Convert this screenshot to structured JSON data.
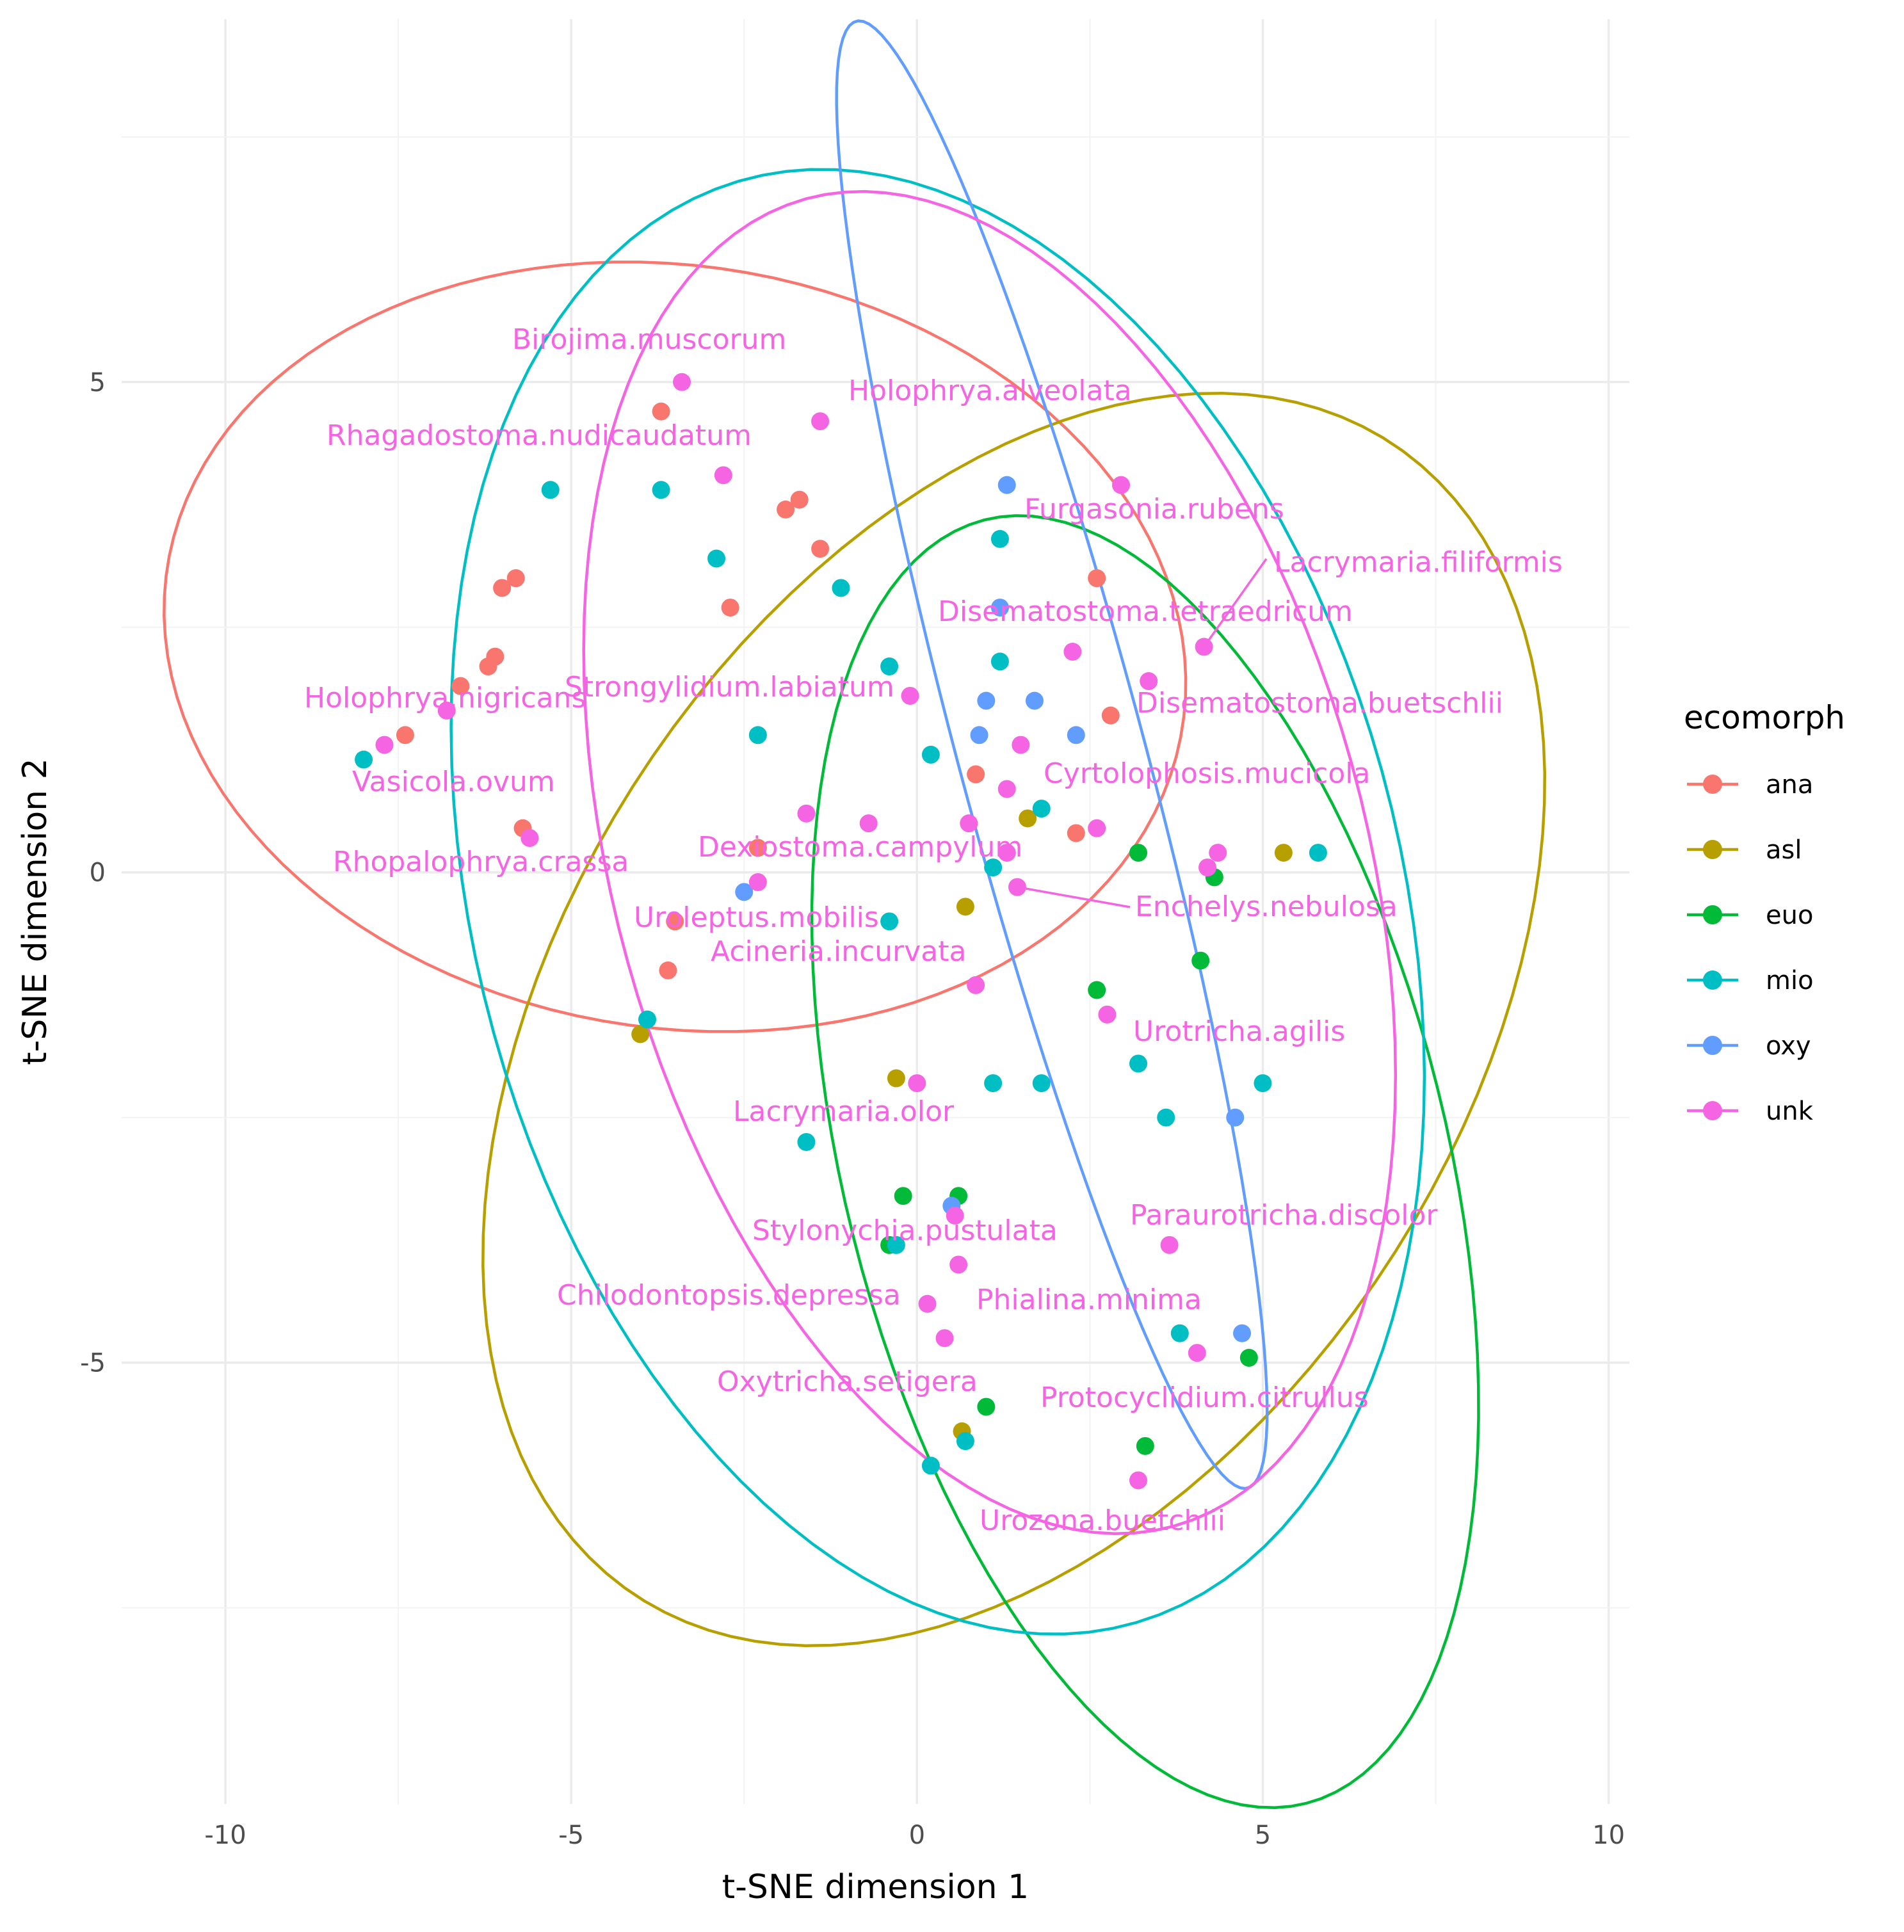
{
  "chart_data": {
    "type": "scatter",
    "xlabel": "t-SNE dimension 1",
    "ylabel": "t-SNE dimension 2",
    "xlim": [
      -11.5,
      10.3
    ],
    "ylim": [
      -9.5,
      8.7
    ],
    "x_ticks": [
      -10,
      -5,
      0,
      5,
      10
    ],
    "y_ticks": [
      -5,
      0,
      5
    ],
    "x_tick_labels": [
      "-10",
      "-5",
      "0",
      "5",
      "10"
    ],
    "y_tick_labels": [
      "-5",
      "0",
      "5"
    ],
    "grid": true,
    "legend": {
      "title": "ecomorph",
      "position": "right",
      "entries": [
        {
          "name": "ana",
          "color": "#F8766D"
        },
        {
          "name": "asl",
          "color": "#B79F00"
        },
        {
          "name": "euo",
          "color": "#00BA38"
        },
        {
          "name": "mio",
          "color": "#00BFC4"
        },
        {
          "name": "oxy",
          "color": "#619CFF"
        },
        {
          "name": "unk",
          "color": "#F564E3"
        }
      ]
    },
    "series": [
      {
        "name": "ana",
        "color": "#F8766D",
        "points": [
          [
            -3.7,
            4.7
          ],
          [
            -1.9,
            3.7
          ],
          [
            -1.7,
            3.8
          ],
          [
            -1.4,
            3.3
          ],
          [
            -2.7,
            2.7
          ],
          [
            -6.0,
            2.9
          ],
          [
            -5.8,
            3.0
          ],
          [
            -6.1,
            2.2
          ],
          [
            -6.2,
            2.1
          ],
          [
            -6.6,
            1.9
          ],
          [
            -7.4,
            1.4
          ],
          [
            -5.7,
            0.45
          ],
          [
            -2.3,
            0.25
          ],
          [
            -3.5,
            -0.5
          ],
          [
            -3.6,
            -1.0
          ],
          [
            0.85,
            1.0
          ],
          [
            2.3,
            0.4
          ],
          [
            2.6,
            3.0
          ],
          [
            2.8,
            1.6
          ]
        ]
      },
      {
        "name": "asl",
        "color": "#B79F00",
        "points": [
          [
            -4.0,
            -1.65
          ],
          [
            -0.3,
            -2.1
          ],
          [
            0.7,
            -0.35
          ],
          [
            1.6,
            0.55
          ],
          [
            5.3,
            0.2
          ],
          [
            0.65,
            -5.7
          ]
        ]
      },
      {
        "name": "euo",
        "color": "#00BA38",
        "points": [
          [
            3.2,
            0.2
          ],
          [
            4.3,
            -0.05
          ],
          [
            4.1,
            -0.9
          ],
          [
            2.6,
            -1.2
          ],
          [
            -0.2,
            -3.3
          ],
          [
            0.6,
            -3.3
          ],
          [
            -0.4,
            -3.8
          ],
          [
            4.8,
            -4.95
          ],
          [
            1.0,
            -5.45
          ],
          [
            3.3,
            -5.85
          ]
        ]
      },
      {
        "name": "mio",
        "color": "#00BFC4",
        "points": [
          [
            -5.3,
            3.9
          ],
          [
            -3.7,
            3.9
          ],
          [
            -2.9,
            3.2
          ],
          [
            -1.1,
            2.9
          ],
          [
            -0.4,
            2.1
          ],
          [
            -2.3,
            1.4
          ],
          [
            0.2,
            1.2
          ],
          [
            1.2,
            2.15
          ],
          [
            1.2,
            3.4
          ],
          [
            -8.0,
            1.15
          ],
          [
            -3.9,
            -1.5
          ],
          [
            -0.4,
            -0.5
          ],
          [
            1.1,
            0.05
          ],
          [
            1.8,
            0.65
          ],
          [
            1.1,
            -2.15
          ],
          [
            1.8,
            -2.15
          ],
          [
            3.2,
            -1.95
          ],
          [
            3.6,
            -2.5
          ],
          [
            5.0,
            -2.15
          ],
          [
            5.8,
            0.2
          ],
          [
            -1.6,
            -2.75
          ],
          [
            -0.3,
            -3.8
          ],
          [
            0.2,
            -6.05
          ],
          [
            0.7,
            -5.8
          ],
          [
            3.8,
            -4.7
          ]
        ]
      },
      {
        "name": "oxy",
        "color": "#619CFF",
        "points": [
          [
            1.3,
            3.95
          ],
          [
            1.2,
            2.7
          ],
          [
            1.0,
            1.75
          ],
          [
            1.7,
            1.75
          ],
          [
            0.9,
            1.4
          ],
          [
            2.3,
            1.4
          ],
          [
            -2.5,
            -0.2
          ],
          [
            4.6,
            -2.5
          ],
          [
            0.5,
            -3.4
          ],
          [
            4.7,
            -4.7
          ]
        ]
      },
      {
        "name": "unk",
        "color": "#F564E3",
        "points": [
          [
            -3.4,
            5.0
          ],
          [
            -1.4,
            4.6
          ],
          [
            -2.8,
            4.05
          ],
          [
            2.95,
            3.95
          ],
          [
            4.15,
            2.3
          ],
          [
            2.25,
            2.25
          ],
          [
            3.35,
            1.95
          ],
          [
            -0.1,
            1.8
          ],
          [
            1.5,
            1.3
          ],
          [
            -6.8,
            1.65
          ],
          [
            -7.7,
            1.3
          ],
          [
            -5.6,
            0.35
          ],
          [
            -1.6,
            0.6
          ],
          [
            -0.7,
            0.5
          ],
          [
            0.75,
            0.5
          ],
          [
            1.3,
            0.85
          ],
          [
            2.6,
            0.45
          ],
          [
            1.3,
            0.2
          ],
          [
            4.35,
            0.2
          ],
          [
            4.2,
            0.05
          ],
          [
            1.45,
            -0.15
          ],
          [
            -2.3,
            -0.1
          ],
          [
            0.85,
            -1.15
          ],
          [
            2.75,
            -1.45
          ],
          [
            0.0,
            -2.15
          ],
          [
            0.55,
            -3.5
          ],
          [
            0.6,
            -4.0
          ],
          [
            0.15,
            -4.4
          ],
          [
            0.4,
            -4.75
          ],
          [
            3.65,
            -3.8
          ],
          [
            4.05,
            -4.9
          ],
          [
            3.2,
            -6.2
          ]
        ]
      }
    ],
    "labels": [
      {
        "text": "Birojima.muscorum",
        "x": -3.4,
        "y": 5.0
      },
      {
        "text": "Holophrya.alveolata",
        "x": -1.4,
        "y": 4.6
      },
      {
        "text": "Rhagadostoma.nudicaudatum",
        "x": -2.8,
        "y": 4.05
      },
      {
        "text": "Furgasonia.rubens",
        "x": 2.95,
        "y": 3.95
      },
      {
        "text": "Lacrymaria.filiformis",
        "x": 4.15,
        "y": 2.3
      },
      {
        "text": "Disematostoma.tetraedricum",
        "x": 2.25,
        "y": 2.25
      },
      {
        "text": "Strongylidium.labiatum",
        "x": -0.1,
        "y": 1.8
      },
      {
        "text": "Disematostoma.buetschlii",
        "x": 3.35,
        "y": 1.95
      },
      {
        "text": "Holophrya.nigricans",
        "x": -6.8,
        "y": 1.65
      },
      {
        "text": "Cyrtolophosis.mucicola",
        "x": 1.3,
        "y": 0.85
      },
      {
        "text": "Vasicola.ovum",
        "x": -7.7,
        "y": 1.3
      },
      {
        "text": "Dexiostoma.campylum",
        "x": 1.3,
        "y": 0.2
      },
      {
        "text": "Rhopalophrya.crassa",
        "x": -5.6,
        "y": 0.35
      },
      {
        "text": "Enchelys.nebulosa",
        "x": 1.45,
        "y": -0.15
      },
      {
        "text": "Uroleptus.mobilis",
        "x": -2.3,
        "y": -0.1
      },
      {
        "text": "Acineria.incurvata",
        "x": 0.85,
        "y": -1.15
      },
      {
        "text": "Urotricha.agilis",
        "x": 2.75,
        "y": -1.45
      },
      {
        "text": "Lacrymaria.olor",
        "x": 0.0,
        "y": -2.15
      },
      {
        "text": "Paraurotricha.discolor",
        "x": 3.65,
        "y": -3.8
      },
      {
        "text": "Stylonychia.pustulata",
        "x": 0.55,
        "y": -3.5
      },
      {
        "text": "Chilodontopsis.depressa",
        "x": 0.15,
        "y": -4.4
      },
      {
        "text": "Phialina.minima",
        "x": 0.6,
        "y": -4.0
      },
      {
        "text": "Oxytricha.setigera",
        "x": 0.4,
        "y": -4.75
      },
      {
        "text": "Protocyclidium.citrullus",
        "x": 4.05,
        "y": -4.9
      },
      {
        "text": "Urozona.buetchlii",
        "x": 3.2,
        "y": -6.2
      }
    ],
    "ellipses": [
      {
        "group": "ana",
        "color": "#F8766D",
        "cx": -3.5,
        "cy": 2.3,
        "rx": 7.4,
        "ry": 3.9,
        "angle": -4
      },
      {
        "group": "asl",
        "color": "#B79F00",
        "cx": 1.4,
        "cy": -1.5,
        "rx": 8.4,
        "ry": 5.4,
        "angle": 32
      },
      {
        "group": "euo",
        "color": "#00BA38",
        "cx": 3.3,
        "cy": -2.95,
        "rx": 7.0,
        "ry": 4.2,
        "angle": -65
      },
      {
        "group": "mio",
        "color": "#00BFC4",
        "cx": 0.3,
        "cy": -0.3,
        "rx": 8.1,
        "ry": 6.3,
        "angle": -52
      },
      {
        "group": "oxy",
        "color": "#619CFF",
        "cx": 1.95,
        "cy": 1.2,
        "rx": 8.0,
        "ry": 1.3,
        "angle": -69
      },
      {
        "group": "unk",
        "color": "#F564E3",
        "cx": 1.05,
        "cy": 0.1,
        "rx": 7.4,
        "ry": 5.15,
        "angle": -58
      }
    ]
  }
}
